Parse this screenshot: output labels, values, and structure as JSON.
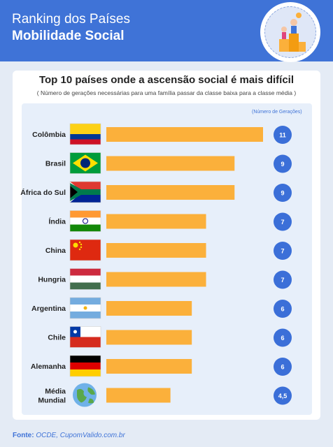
{
  "header": {
    "title_line1": "Ranking dos Países",
    "title_line2": "Mobilidade Social"
  },
  "source": {
    "label": "Fonte:",
    "text": "OCDE, CupomValido.com.br"
  },
  "colors": {
    "header_bg": "#3f73d7",
    "bar": "#fbb03b",
    "circle": "#3b6fd8"
  },
  "chart_data": {
    "type": "bar",
    "orientation": "horizontal",
    "title": "Top 10 países onde a ascensão social é mais difícil",
    "subtitle": "( Número de gerações necessárias para uma família passar da classe baixa para a classe média )",
    "value_header": "(Número de Gerações)",
    "categories": [
      "Colômbia",
      "Brasil",
      "África do Sul",
      "Índia",
      "China",
      "Hungria",
      "Argentina",
      "Chile",
      "Alemanha",
      "Média Mundial"
    ],
    "values": [
      11,
      9,
      9,
      7,
      7,
      7,
      6,
      6,
      6,
      4.5
    ],
    "value_labels": [
      "11",
      "9",
      "9",
      "7",
      "7",
      "7",
      "6",
      "6",
      "6",
      "4,5"
    ],
    "icons": [
      "flag-colombia-icon",
      "flag-brazil-icon",
      "flag-south-africa-icon",
      "flag-india-icon",
      "flag-china-icon",
      "flag-hungary-icon",
      "flag-argentina-icon",
      "flag-chile-icon",
      "flag-germany-icon",
      "globe-icon"
    ],
    "xlim": [
      0,
      11
    ]
  }
}
